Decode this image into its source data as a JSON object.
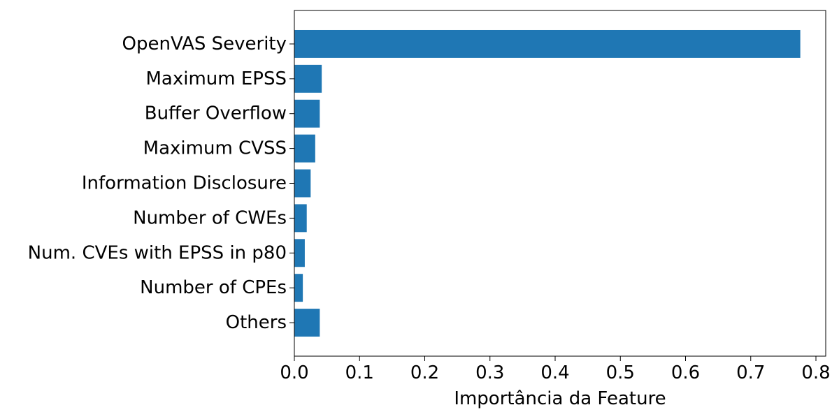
{
  "chart_data": {
    "type": "bar",
    "orientation": "horizontal",
    "categories": [
      "OpenVAS Severity",
      "Maximum EPSS",
      "Buffer Overflow",
      "Maximum CVSS",
      "Information Disclosure",
      "Number of CWEs",
      "Num. CVEs with EPSS in p80",
      "Number of CPEs",
      "Others"
    ],
    "values": [
      0.776,
      0.042,
      0.039,
      0.032,
      0.025,
      0.019,
      0.016,
      0.013,
      0.039
    ],
    "title": "",
    "xlabel": "Importância da Feature",
    "ylabel": "",
    "xlim": [
      0,
      0.815
    ],
    "xticks": [
      0.0,
      0.1,
      0.2,
      0.3,
      0.4,
      0.5,
      0.6,
      0.7,
      0.8
    ],
    "xtick_labels": [
      "0.0",
      "0.1",
      "0.2",
      "0.3",
      "0.4",
      "0.5",
      "0.6",
      "0.7",
      "0.8"
    ],
    "grid": false,
    "bar_color": "#1f77b4",
    "axis_color": "#000000"
  }
}
